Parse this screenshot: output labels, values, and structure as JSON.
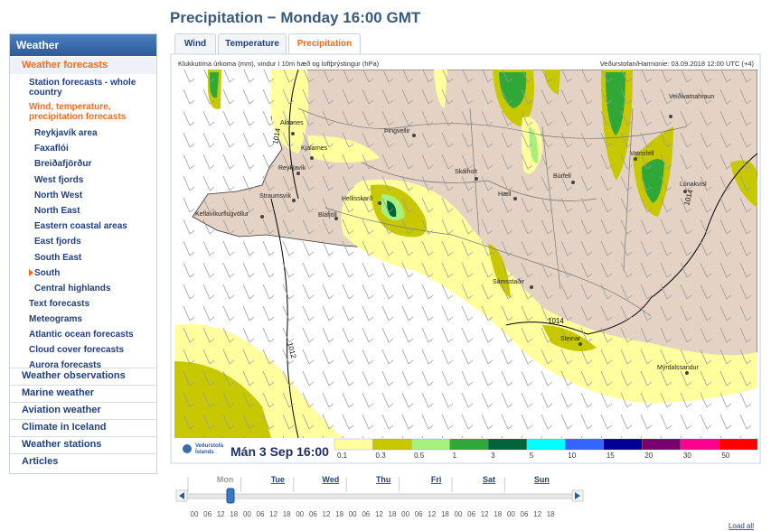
{
  "sidebar": {
    "title": "Weather",
    "active_section": "Weather forecasts",
    "forecast_links": [
      "Station forecasts - whole country",
      "Wind, temperature, precipitation forecasts"
    ],
    "regions": [
      "Reykjavík area",
      "Faxaflói",
      "Breiðafjörður",
      "West fjords",
      "North West",
      "North East",
      "Eastern coastal areas",
      "East fjords",
      "South East",
      "South",
      "Central highlands"
    ],
    "more_links": [
      "Text forecasts",
      "Meteograms",
      "Atlantic ocean forecasts",
      "Cloud cover forecasts",
      "Aurora forecasts"
    ],
    "sections": [
      "Weather observations",
      "Marine weather",
      "Aviation weather",
      "Climate in Iceland",
      "Weather stations",
      "Articles"
    ]
  },
  "page": {
    "title": "Precipitation − Monday 16:00 GMT",
    "tabs": [
      "Wind",
      "Temperature",
      "Precipitation"
    ]
  },
  "map": {
    "caption": "Klukkutíma úrkoma (mm), vindur í 10m hæð og loftþrýstingur (hPa)",
    "source": "Veðurstofan/Harmonie: 03.09.2018 12:00 UTC (+4)",
    "places": [
      "Akranes",
      "Kjalarnes",
      "Reykjavík",
      "Straumsvík",
      "Keflavíkurflugvöllur",
      "Bláfjöll",
      "Hellisskarð",
      "Þingvellir",
      "Skálholt",
      "Hæll",
      "Búrfell",
      "Sámsstaðir",
      "Steinar",
      "Mýrdalssandur",
      "Vatnsfell",
      "Veiðivatnahraun",
      "Lónakvísl"
    ],
    "isobars": [
      1014,
      1012,
      1014,
      1014
    ],
    "logo": [
      "Veðurstofa",
      "Íslands"
    ],
    "time": "Mán 3 Sep 16:00",
    "legend": [
      {
        "value": 0.1,
        "color": "#ffff9e"
      },
      {
        "value": 0.3,
        "color": "#c8c800"
      },
      {
        "value": 0.5,
        "color": "#a8f07c"
      },
      {
        "value": 1,
        "color": "#2fa838"
      },
      {
        "value": 3,
        "color": "#00663a"
      },
      {
        "value": 5,
        "color": "#00ffff"
      },
      {
        "value": 10,
        "color": "#3366ff"
      },
      {
        "value": 15,
        "color": "#000099"
      },
      {
        "value": 20,
        "color": "#7a0070"
      },
      {
        "value": 30,
        "color": "#ff0090"
      },
      {
        "value": 50,
        "color": "#ff0000"
      }
    ]
  },
  "timeline": {
    "days": [
      {
        "label": "Mon",
        "hours": [
          "00",
          "06",
          "12",
          "18"
        ]
      },
      {
        "label": "Tue",
        "hours": [
          "00",
          "06",
          "12",
          "18"
        ]
      },
      {
        "label": "Wed",
        "hours": [
          "00",
          "06",
          "12",
          "18"
        ]
      },
      {
        "label": "Thu",
        "hours": [
          "00",
          "06",
          "12",
          "18"
        ]
      },
      {
        "label": "Fri",
        "hours": [
          "00",
          "06",
          "12",
          "18"
        ]
      },
      {
        "label": "Sat",
        "hours": [
          "00",
          "06",
          "12",
          "18"
        ]
      },
      {
        "label": "Sun",
        "hours": [
          "00",
          "06",
          "12",
          "18"
        ]
      }
    ],
    "load_all": "Load all"
  }
}
